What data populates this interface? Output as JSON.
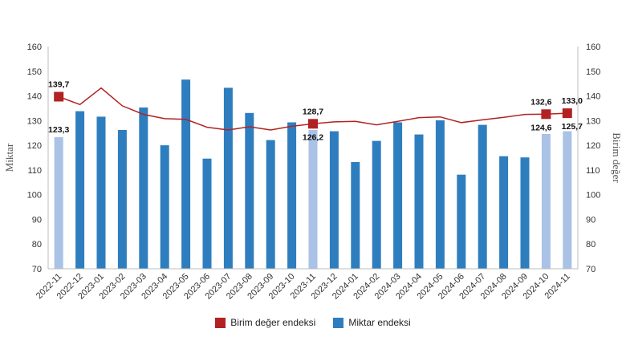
{
  "chart_data": {
    "type": "bar",
    "categories": [
      "2022-11",
      "2022-12",
      "2023-01",
      "2023-02",
      "2023-03",
      "2023-04",
      "2023-05",
      "2023-06",
      "2023-07",
      "2023-08",
      "2023-09",
      "2023-10",
      "2023-11",
      "2023-12",
      "2024-01",
      "2024-02",
      "2024-03",
      "2024-04",
      "2024-05",
      "2024-06",
      "2024-07",
      "2024-08",
      "2024-09",
      "2024-10",
      "2024-11"
    ],
    "series": [
      {
        "name": "Birim değer endeksi",
        "type": "line",
        "axis": "right",
        "color": "#b22222",
        "values": [
          139.7,
          136.5,
          143.2,
          136.0,
          132.5,
          130.8,
          130.5,
          127.3,
          126.2,
          127.5,
          126.2,
          127.7,
          128.7,
          129.5,
          129.7,
          128.3,
          129.7,
          131.2,
          131.5,
          129.2,
          130.3,
          131.3,
          132.5,
          132.6,
          133.0
        ],
        "labeled_points": [
          {
            "index": 0,
            "label": "139,7"
          },
          {
            "index": 12,
            "label": "128,7"
          },
          {
            "index": 23,
            "label": "132,6"
          },
          {
            "index": 24,
            "label": "133,0"
          }
        ]
      },
      {
        "name": "Miktar endeksi",
        "type": "bar",
        "axis": "left",
        "color": "#2e7ebf",
        "highlight_color": "#a9c2e6",
        "highlighted_indices": [
          0,
          12,
          23,
          24
        ],
        "values": [
          123.3,
          133.8,
          131.6,
          126.2,
          135.3,
          120.0,
          146.6,
          114.6,
          143.3,
          133.1,
          122.1,
          129.3,
          126.2,
          125.7,
          113.2,
          121.8,
          129.3,
          124.4,
          130.1,
          108.1,
          128.3,
          115.6,
          115.1,
          124.6,
          125.7
        ],
        "labeled_points": [
          {
            "index": 0,
            "label": "123,3"
          },
          {
            "index": 12,
            "label": "126,2"
          },
          {
            "index": 23,
            "label": "124,6"
          },
          {
            "index": 24,
            "label": "125,7"
          }
        ]
      }
    ],
    "ylabel_left": "Miktar",
    "ylabel_right": "Birim değer",
    "ylim_left": [
      70,
      160
    ],
    "ylim_right": [
      70,
      160
    ],
    "yticks": [
      70,
      80,
      90,
      100,
      110,
      120,
      130,
      140,
      150,
      160
    ],
    "grid": false,
    "legend_position": "bottom-center"
  },
  "legend": {
    "line_label": "Birim değer endeksi",
    "bar_label": "Miktar endeksi"
  }
}
